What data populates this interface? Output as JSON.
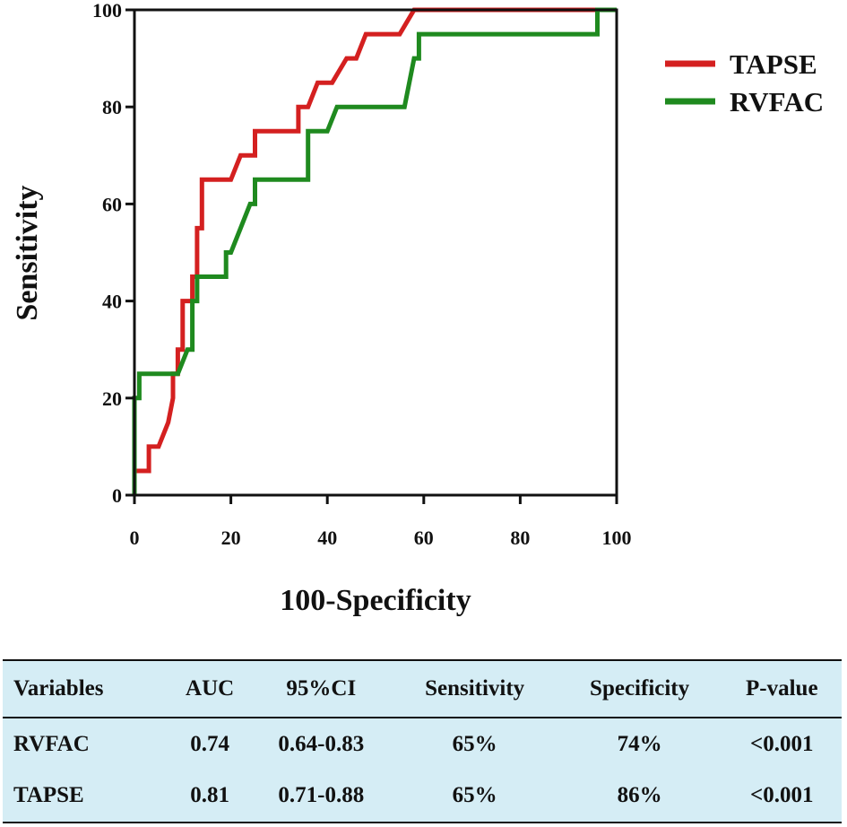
{
  "chart_data": {
    "type": "line",
    "title": "",
    "xlabel": "100-Specificity",
    "ylabel": "Sensitivity",
    "xlim": [
      0,
      100
    ],
    "ylim": [
      0,
      100
    ],
    "xticks": [
      "0",
      "20",
      "40",
      "60",
      "80",
      "100"
    ],
    "yticks": [
      "0",
      "20",
      "40",
      "60",
      "80",
      "100"
    ],
    "grid": false,
    "legend": "right",
    "series": [
      {
        "name": "TAPSE",
        "color": "#d42020",
        "points": [
          [
            0,
            0
          ],
          [
            0,
            5
          ],
          [
            3,
            5
          ],
          [
            3,
            10
          ],
          [
            5,
            10
          ],
          [
            7,
            15
          ],
          [
            8,
            20
          ],
          [
            8,
            25
          ],
          [
            9,
            25
          ],
          [
            9,
            30
          ],
          [
            10,
            30
          ],
          [
            10,
            40
          ],
          [
            12,
            40
          ],
          [
            12,
            45
          ],
          [
            13,
            45
          ],
          [
            13,
            55
          ],
          [
            14,
            55
          ],
          [
            14,
            65
          ],
          [
            20,
            65
          ],
          [
            22,
            70
          ],
          [
            25,
            70
          ],
          [
            25,
            75
          ],
          [
            34,
            75
          ],
          [
            34,
            80
          ],
          [
            36,
            80
          ],
          [
            38,
            85
          ],
          [
            41,
            85
          ],
          [
            44,
            90
          ],
          [
            46,
            90
          ],
          [
            48,
            95
          ],
          [
            55,
            95
          ],
          [
            58,
            100
          ],
          [
            100,
            100
          ]
        ]
      },
      {
        "name": "RVFAC",
        "color": "#1f8a1f",
        "points": [
          [
            0,
            0
          ],
          [
            0,
            20
          ],
          [
            1,
            20
          ],
          [
            1,
            25
          ],
          [
            9,
            25
          ],
          [
            11,
            30
          ],
          [
            12,
            30
          ],
          [
            12,
            40
          ],
          [
            13,
            40
          ],
          [
            13,
            45
          ],
          [
            19,
            45
          ],
          [
            19,
            50
          ],
          [
            20,
            50
          ],
          [
            22,
            55
          ],
          [
            24,
            60
          ],
          [
            25,
            60
          ],
          [
            25,
            65
          ],
          [
            36,
            65
          ],
          [
            36,
            75
          ],
          [
            40,
            75
          ],
          [
            42,
            80
          ],
          [
            56,
            80
          ],
          [
            58,
            90
          ],
          [
            59,
            90
          ],
          [
            59,
            95
          ],
          [
            96,
            95
          ],
          [
            96,
            100
          ],
          [
            100,
            100
          ]
        ]
      }
    ]
  },
  "table": {
    "headers": [
      "Variables",
      "AUC",
      "95%CI",
      "Sensitivity",
      "Specificity",
      "P-value"
    ],
    "rows": [
      [
        "RVFAC",
        "0.74",
        "0.64-0.83",
        "65%",
        "74%",
        "<0.001"
      ],
      [
        "TAPSE",
        "0.81",
        "0.71-0.88",
        "65%",
        "86%",
        "<0.001"
      ]
    ]
  }
}
